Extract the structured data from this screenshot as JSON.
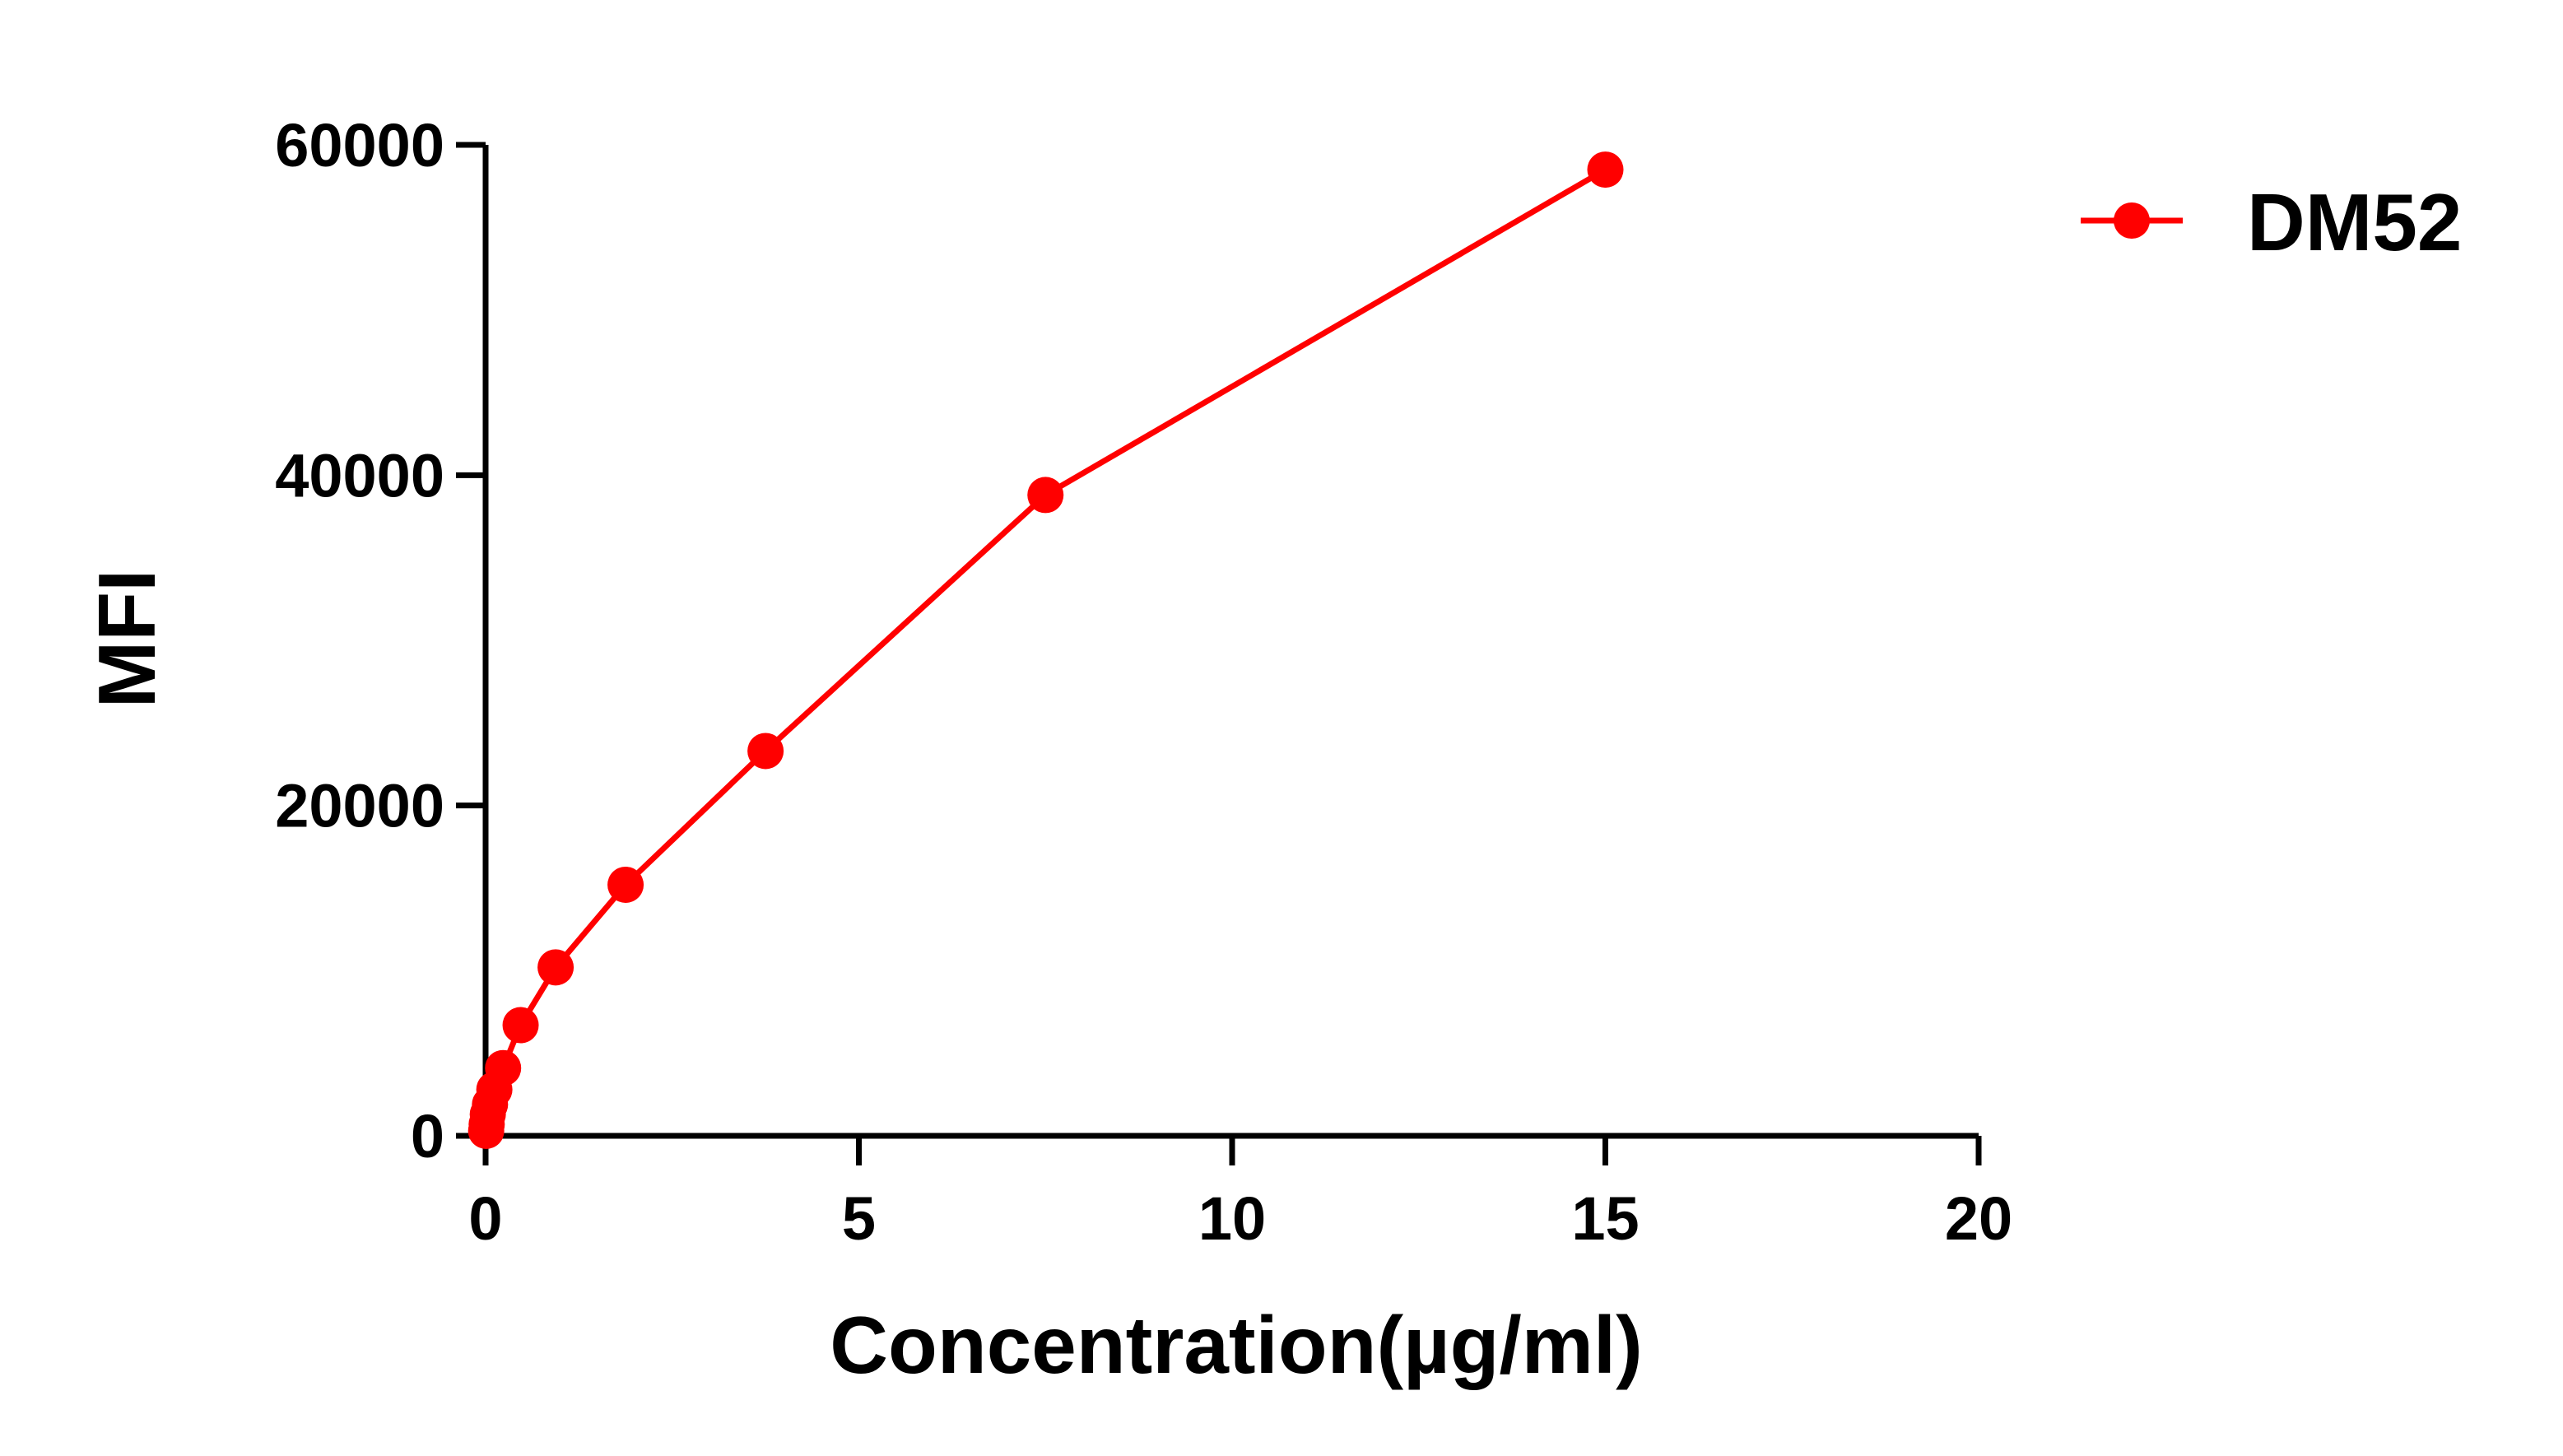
{
  "chart_data": {
    "type": "line",
    "title": "",
    "xlabel": "Concentration(µg/ml)",
    "ylabel": "MFI",
    "xlim": [
      0,
      20
    ],
    "ylim": [
      0,
      60000
    ],
    "xticks": [
      0,
      5,
      10,
      15,
      20
    ],
    "yticks": [
      0,
      20000,
      40000,
      60000
    ],
    "xtick_labels": [
      "0",
      "5",
      "10",
      "15",
      "20"
    ],
    "ytick_labels": [
      "0",
      "20000",
      "40000",
      "60000"
    ],
    "grid": false,
    "legend": {
      "position": "top-right"
    },
    "series": [
      {
        "name": "DM52",
        "color": "#ff0000",
        "marker": "circle",
        "x": [
          0.0073,
          0.0146,
          0.0293,
          0.0586,
          0.117,
          0.234,
          0.469,
          0.938,
          1.875,
          3.75,
          7.5,
          15
        ],
        "y": [
          300,
          700,
          1300,
          1900,
          2800,
          4100,
          6700,
          10200,
          15200,
          23300,
          38800,
          58500
        ]
      }
    ]
  }
}
